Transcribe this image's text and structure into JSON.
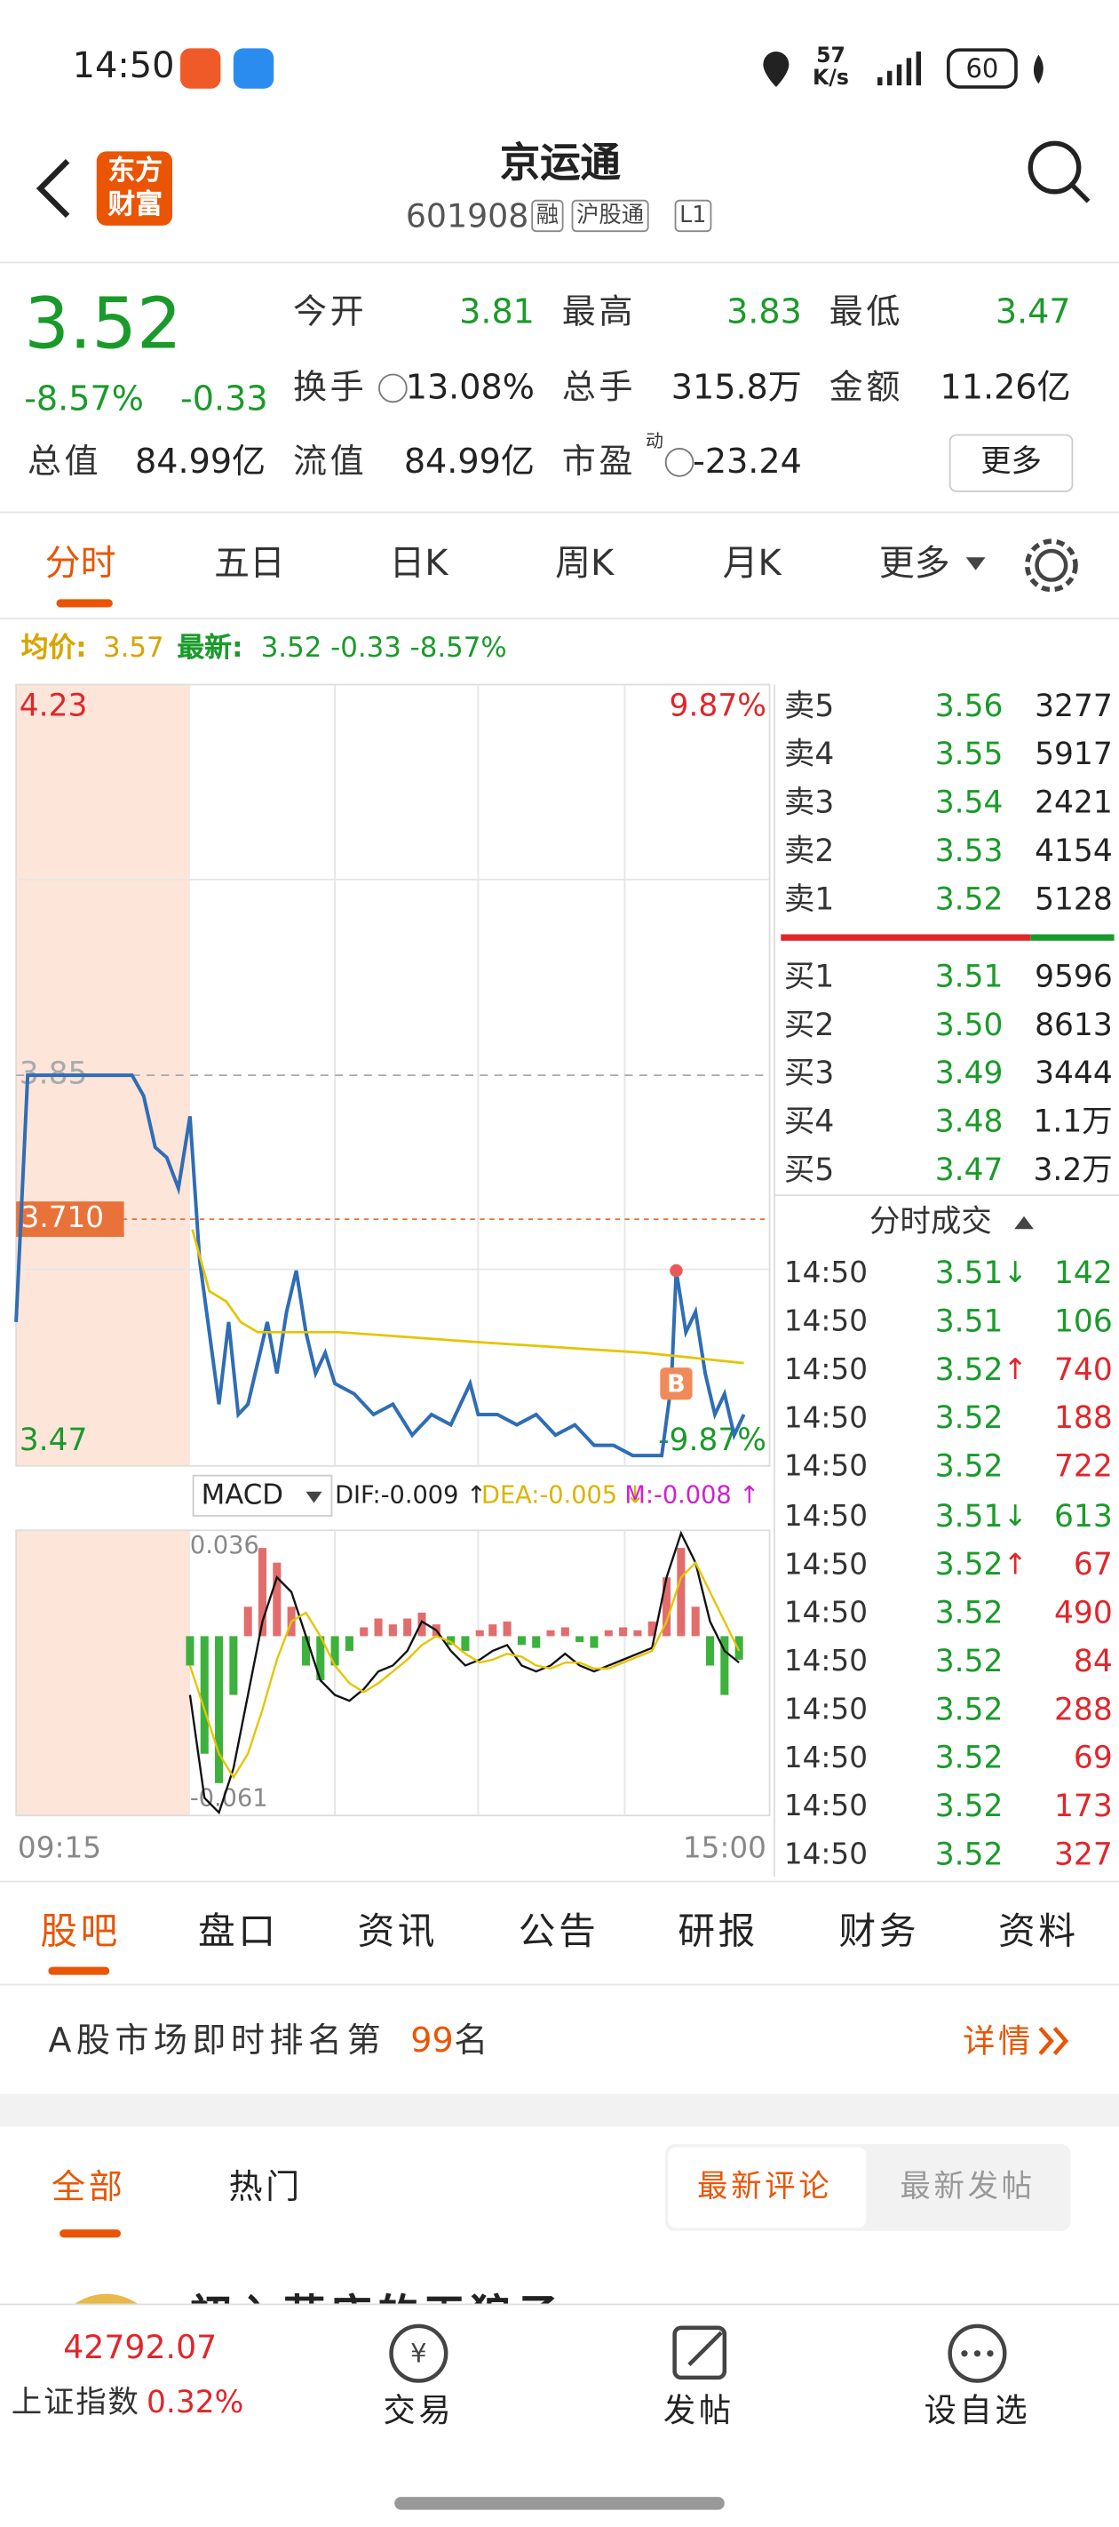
{
  "status_bar": {
    "time": "14:50",
    "net_speed": "57",
    "net_unit": "K/s",
    "battery": "60"
  },
  "header": {
    "logo_lines": [
      "东方",
      "财富"
    ],
    "title": "京运通",
    "code": "601908",
    "tags": [
      "融",
      "沪股通",
      "L1"
    ]
  },
  "quote": {
    "price": "3.52",
    "change_pct": "-8.57%",
    "change": "-0.33",
    "fields": [
      {
        "label": "今开",
        "value": "3.81",
        "color": "#1a9a2a"
      },
      {
        "label": "最高",
        "value": "3.83",
        "color": "#1a9a2a"
      },
      {
        "label": "最低",
        "value": "3.47",
        "color": "#1a9a2a"
      },
      {
        "label": "换手",
        "value": "13.08%"
      },
      {
        "label": "总手",
        "value": "315.8万"
      },
      {
        "label": "金额",
        "value": "11.26亿"
      },
      {
        "label": "总值",
        "value": "84.99亿"
      },
      {
        "label": "流值",
        "value": "84.99亿"
      },
      {
        "label": "市盈",
        "label_sup": "动",
        "value": "-23.24"
      }
    ],
    "more_button": "更多"
  },
  "chart_tabs": [
    "分时",
    "五日",
    "日K",
    "周K",
    "月K",
    "更多"
  ],
  "intraday_header": {
    "avg_label": "均价:",
    "avg": "3.57",
    "latest_label": "最新:",
    "latest": "3.52 -0.33 -8.57%"
  },
  "chart_data": {
    "type": "line",
    "series": [
      {
        "name": "价格",
        "color": "#2f6db5",
        "x": [
          "09:15",
          "09:16",
          "09:25",
          "09:26",
          "09:27",
          "09:28",
          "09:29",
          "09:30",
          "09:34",
          "09:38",
          "09:42",
          "09:46",
          "09:50",
          "09:54",
          "09:58",
          "10:02",
          "10:06",
          "10:10",
          "10:14",
          "10:18",
          "10:22",
          "10:26",
          "10:30",
          "10:38",
          "10:46",
          "10:54",
          "11:02",
          "11:10",
          "11:18",
          "11:26",
          "13:00",
          "13:08",
          "13:16",
          "13:24",
          "13:32",
          "13:40",
          "13:48",
          "13:56",
          "14:04",
          "14:12",
          "14:16",
          "14:20",
          "14:22",
          "14:26",
          "14:30",
          "14:34",
          "14:38",
          "14:42",
          "14:46",
          "14:50"
        ],
        "values": [
          3.61,
          3.85,
          3.85,
          3.83,
          3.78,
          3.77,
          3.74,
          3.81,
          3.67,
          3.6,
          3.53,
          3.61,
          3.52,
          3.53,
          3.57,
          3.61,
          3.56,
          3.62,
          3.66,
          3.6,
          3.56,
          3.58,
          3.55,
          3.54,
          3.52,
          3.53,
          3.5,
          3.52,
          3.51,
          3.55,
          3.52,
          3.52,
          3.51,
          3.52,
          3.5,
          3.51,
          3.49,
          3.49,
          3.48,
          3.48,
          3.48,
          3.55,
          3.66,
          3.6,
          3.62,
          3.56,
          3.52,
          3.54,
          3.5,
          3.52
        ]
      },
      {
        "name": "均价",
        "color": "#e5c400",
        "x": [
          "09:31",
          "09:38",
          "09:45",
          "09:51",
          "09:58",
          "10:12",
          "10:32",
          "13:02",
          "14:09",
          "14:50"
        ],
        "values": [
          3.7,
          3.64,
          3.63,
          3.61,
          3.6,
          3.6,
          3.6,
          3.59,
          3.58,
          3.57
        ]
      }
    ],
    "ylim": [
      3.47,
      4.23
    ],
    "yticks": [
      4.23,
      3.85,
      3.47
    ],
    "y2lim": [
      -9.87,
      9.87
    ],
    "y2ticks": [
      {
        "value": 9.87,
        "label": "9.87%"
      },
      {
        "value": -9.87,
        "label": "-9.87%"
      }
    ],
    "marker_price": {
      "value": 3.71,
      "label": "3.710"
    },
    "trade_marker": {
      "label": "B",
      "x": "14:22",
      "value": 3.55
    },
    "x_labels": [
      "09:15",
      "15:00"
    ]
  },
  "macd": {
    "type": "macd",
    "title": "MACD",
    "dif_label": "DIF:-0.009 ↑",
    "dea_label": "DEA:-0.005 ↓",
    "m_label": "M:-0.008 ↑",
    "ylim": [
      -0.061,
      0.036
    ],
    "yticks": [
      0.036,
      -0.061
    ],
    "x": [
      "09:30",
      "09:36",
      "09:42",
      "09:48",
      "09:54",
      "10:00",
      "10:06",
      "10:12",
      "10:18",
      "10:24",
      "10:30",
      "10:36",
      "10:42",
      "10:48",
      "10:54",
      "11:00",
      "11:06",
      "11:12",
      "11:18",
      "11:24",
      "11:30",
      "13:06",
      "13:12",
      "13:18",
      "13:24",
      "13:30",
      "13:36",
      "13:42",
      "13:48",
      "13:54",
      "14:00",
      "14:06",
      "14:12",
      "14:18",
      "14:24",
      "14:30",
      "14:36",
      "14:42",
      "14:48"
    ],
    "hist": [
      -0.01,
      -0.04,
      -0.05,
      -0.02,
      0.01,
      0.03,
      0.025,
      0.01,
      -0.01,
      -0.015,
      -0.01,
      -0.005,
      0.003,
      0.006,
      0.004,
      0.006,
      0.008,
      0.004,
      -0.003,
      -0.005,
      0.002,
      0.004,
      0.005,
      -0.003,
      -0.004,
      0.002,
      0.003,
      -0.002,
      -0.004,
      0.002,
      0.003,
      0.002,
      0.005,
      0.02,
      0.03,
      0.01,
      -0.01,
      -0.02,
      -0.008
    ],
    "dif": [
      -0.02,
      -0.055,
      -0.06,
      -0.045,
      -0.02,
      0.005,
      0.02,
      0.015,
      0,
      -0.015,
      -0.02,
      -0.022,
      -0.018,
      -0.012,
      -0.01,
      -0.005,
      0.005,
      0.002,
      -0.005,
      -0.01,
      -0.008,
      -0.005,
      -0.003,
      -0.01,
      -0.012,
      -0.01,
      -0.006,
      -0.01,
      -0.012,
      -0.01,
      -0.008,
      -0.006,
      -0.004,
      0.02,
      0.035,
      0.025,
      0.005,
      -0.005,
      -0.009
    ],
    "dea": [
      -0.01,
      -0.025,
      -0.04,
      -0.048,
      -0.04,
      -0.025,
      -0.008,
      0.005,
      0.008,
      0,
      -0.01,
      -0.016,
      -0.019,
      -0.016,
      -0.012,
      -0.008,
      -0.003,
      0,
      -0.002,
      -0.006,
      -0.009,
      -0.008,
      -0.006,
      -0.007,
      -0.01,
      -0.011,
      -0.009,
      -0.009,
      -0.011,
      -0.011,
      -0.009,
      -0.007,
      -0.005,
      0.005,
      0.02,
      0.025,
      0.015,
      0.005,
      -0.005
    ],
    "dif_color": "#111111",
    "dea_color": "#e5c400",
    "up_color": "#e26d6d",
    "down_color": "#3db13d"
  },
  "order_book": {
    "asks": [
      {
        "label": "卖5",
        "price": "3.56",
        "volume": "3277"
      },
      {
        "label": "卖4",
        "price": "3.55",
        "volume": "5917"
      },
      {
        "label": "卖3",
        "price": "3.54",
        "volume": "2421"
      },
      {
        "label": "卖2",
        "price": "3.53",
        "volume": "4154"
      },
      {
        "label": "卖1",
        "price": "3.52",
        "volume": "5128"
      }
    ],
    "bids": [
      {
        "label": "买1",
        "price": "3.51",
        "volume": "9596"
      },
      {
        "label": "买2",
        "price": "3.50",
        "volume": "8613"
      },
      {
        "label": "买3",
        "price": "3.49",
        "volume": "3444"
      },
      {
        "label": "买4",
        "price": "3.48",
        "volume": "1.1万"
      },
      {
        "label": "买5",
        "price": "3.47",
        "volume": "3.2万"
      }
    ],
    "trades_title": "分时成交",
    "trades": [
      {
        "time": "14:50",
        "price": "3.51",
        "arrow": "↓",
        "volume": "142",
        "color": "#1a9a2a"
      },
      {
        "time": "14:50",
        "price": "3.51",
        "volume": "106",
        "color": "#1a9a2a"
      },
      {
        "time": "14:50",
        "price": "3.52",
        "arrow": "↑",
        "volume": "740",
        "color": "#e0262b"
      },
      {
        "time": "14:50",
        "price": "3.52",
        "volume": "188",
        "color": "#e0262b"
      },
      {
        "time": "14:50",
        "price": "3.52",
        "volume": "722",
        "color": "#e0262b"
      },
      {
        "time": "14:50",
        "price": "3.51",
        "arrow": "↓",
        "volume": "613",
        "color": "#1a9a2a"
      },
      {
        "time": "14:50",
        "price": "3.52",
        "arrow": "↑",
        "volume": "67",
        "color": "#e0262b"
      },
      {
        "time": "14:50",
        "price": "3.52",
        "volume": "490",
        "color": "#e0262b"
      },
      {
        "time": "14:50",
        "price": "3.52",
        "volume": "84",
        "color": "#e0262b"
      },
      {
        "time": "14:50",
        "price": "3.52",
        "volume": "288",
        "color": "#e0262b"
      },
      {
        "time": "14:50",
        "price": "3.52",
        "volume": "69",
        "color": "#e0262b"
      },
      {
        "time": "14:50",
        "price": "3.52",
        "volume": "173",
        "color": "#e0262b"
      },
      {
        "time": "14:50",
        "price": "3.52",
        "volume": "327",
        "color": "#e0262b"
      }
    ]
  },
  "bottom_tabs": [
    "股吧",
    "盘口",
    "资讯",
    "公告",
    "研报",
    "财务",
    "资料"
  ],
  "ranking": {
    "prefix": "A股市场即时排名第",
    "rank": "99",
    "suffix": "名",
    "detail": "详情"
  },
  "feed": {
    "tabs": [
      "全部",
      "热门"
    ],
    "sort": [
      "最新评论",
      "最新发帖"
    ],
    "first_post_author": "初入茅庐的天狼子"
  },
  "nav": {
    "index_value": "42792.07",
    "index_name": "上证指数",
    "index_change": "0.32%",
    "items": [
      "交易",
      "发帖",
      "设自选"
    ]
  }
}
